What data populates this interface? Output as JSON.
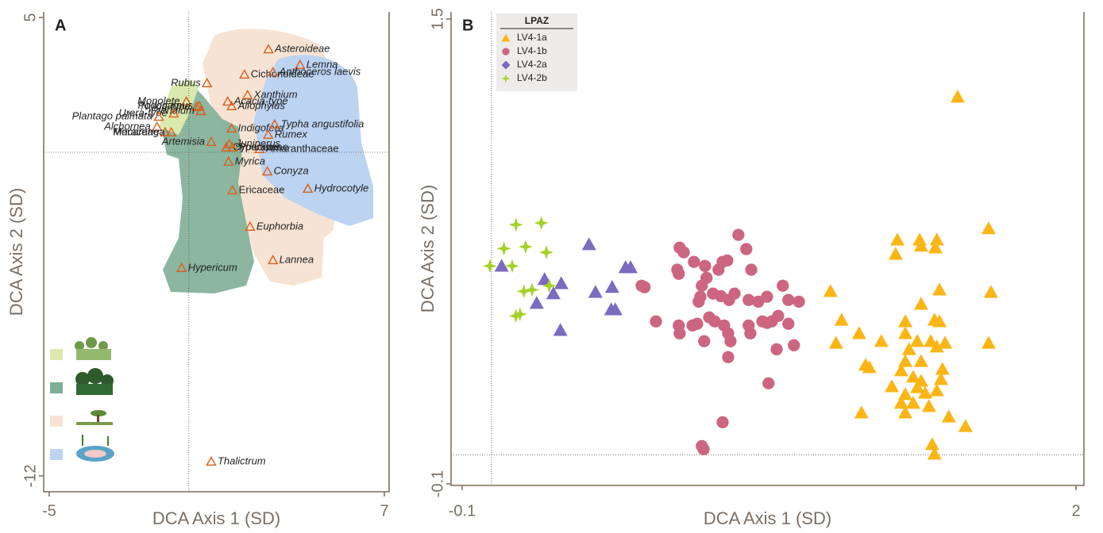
{
  "chart_data": [
    {
      "type": "scatter",
      "panel_label": "A",
      "xlabel": "DCA Axis 1 (SD)",
      "ylabel": "DCA Axis 2 (SD)",
      "xlim": [
        -5,
        7
      ],
      "ylim": [
        -12,
        5
      ],
      "xticks": [
        -5,
        7
      ],
      "yticks": [
        -12,
        5
      ],
      "zero_lines": true,
      "series": [
        {
          "color": "#d9601a",
          "marker": "open-triangle",
          "labels": [
            "Asteroideae",
            "Lemna",
            "Cichorioideae",
            "Anthoceros laevis",
            "Rubus",
            "Acacia-type",
            "Xanthium",
            "Allophylus",
            "Monolete",
            "Nuxia-type",
            "Podocarpus",
            "Pteridium",
            "Urera-type",
            "Plantago palmata",
            "Alchornea",
            "Moraceae",
            "Macaranga",
            "Indigofera",
            "Typha angustifolia",
            "Rumex",
            "Artemisia",
            "Amaranthaceae",
            "Cyperaceae",
            "Poaceae",
            "Juniperus",
            "Myrica",
            "Conyza",
            "Ericaceae",
            "Hydrocotyle",
            "Euphorbia",
            "Lannea",
            "Hypericum",
            "Thalictrum"
          ],
          "italic": [
            true,
            true,
            false,
            true,
            true,
            true,
            true,
            true,
            true,
            true,
            true,
            true,
            true,
            true,
            true,
            false,
            true,
            true,
            true,
            true,
            true,
            false,
            false,
            false,
            true,
            true,
            true,
            false,
            true,
            true,
            true,
            true,
            true
          ],
          "x": [
            2.85,
            3.98,
            1.99,
            3.01,
            0.65,
            1.39,
            2.1,
            1.53,
            -0.09,
            0.28,
            0.37,
            0.43,
            -0.54,
            -1.08,
            -1.14,
            -0.85,
            -0.63,
            1.53,
            3.07,
            2.84,
            0.8,
            2.53,
            1.34,
            1.56,
            1.45,
            1.42,
            2.81,
            1.56,
            4.26,
            2.19,
            3.01,
            -0.26,
            0.8
          ],
          "values": [
            3.82,
            3.24,
            2.88,
            2.97,
            2.56,
            1.88,
            2.12,
            1.71,
            1.88,
            1.68,
            1.72,
            1.53,
            1.44,
            1.32,
            0.94,
            0.74,
            0.74,
            0.88,
            1.03,
            0.65,
            0.38,
            0.12,
            0.18,
            0.18,
            0.3,
            -0.35,
            -0.71,
            -1.41,
            -1.35,
            -2.76,
            -4.0,
            -4.29,
            -11.47
          ]
        }
      ]
    },
    {
      "type": "scatter",
      "panel_label": "B",
      "xlabel": "DCA Axis 1 (SD)",
      "ylabel": "DCA Axis 2 (SD)",
      "xlim": [
        -0.1,
        2.0
      ],
      "ylim": [
        -0.1,
        1.5
      ],
      "xticks": [
        -0.1,
        2.0
      ],
      "yticks": [
        -0.1,
        1.5
      ],
      "zero_lines": true,
      "legend_title": "LPAZ",
      "legend": "top-left",
      "series": [
        {
          "name": "LV4-1a",
          "color": "#fbb515",
          "marker": "triangle",
          "legend_marker": "triangle",
          "x": [
            1.595,
            1.701,
            1.389,
            1.465,
            1.524,
            1.383,
            1.47,
            1.519,
            1.16,
            1.709,
            1.533,
            1.47,
            1.198,
            1.416,
            1.516,
            1.533,
            1.258,
            1.334,
            1.179,
            1.416,
            1.457,
            1.503,
            1.552,
            1.524,
            1.701,
            1.429,
            1.416,
            1.47,
            1.28,
            1.293,
            1.402,
            1.543,
            1.443,
            1.47,
            1.538,
            1.457,
            1.37,
            1.484,
            1.524,
            1.416,
            1.402,
            1.497,
            1.443,
            1.565,
            1.266,
            1.416,
            1.622,
            1.508,
            1.516
          ],
          "values": [
            1.232,
            0.779,
            0.74,
            0.74,
            0.74,
            0.691,
            0.719,
            0.713,
            0.563,
            0.56,
            0.568,
            0.519,
            0.464,
            0.459,
            0.464,
            0.459,
            0.418,
            0.391,
            0.385,
            0.418,
            0.391,
            0.391,
            0.385,
            0.372,
            0.385,
            0.363,
            0.322,
            0.322,
            0.309,
            0.301,
            0.29,
            0.295,
            0.268,
            0.254,
            0.26,
            0.232,
            0.235,
            0.213,
            0.221,
            0.208,
            0.178,
            0.167,
            0.178,
            0.131,
            0.145,
            0.145,
            0.098,
            0.036,
            0.003
          ]
        },
        {
          "name": "LV4-1b",
          "color": "#cc6680",
          "marker": "circle",
          "legend_marker": "circle",
          "x": [
            0.514,
            0.524,
            0.563,
            0.644,
            0.658,
            0.693,
            0.636,
            0.641,
            0.731,
            0.736,
            0.777,
            0.791,
            0.807,
            0.872,
            0.845,
            0.889,
            0.72,
            0.715,
            0.709,
            0.758,
            0.785,
            0.813,
            0.832,
            0.88,
            0.913,
            0.943,
            0.997,
            1.016,
            1.052,
            0.641,
            0.644,
            0.688,
            0.704,
            0.728,
            0.745,
            0.764,
            0.796,
            0.81,
            0.818,
            0.88,
            0.886,
            0.927,
            0.943,
            0.959,
            0.981,
            1.016,
            1.035,
            0.976,
            0.81,
            0.948,
            0.791,
            0.72,
            0.726
          ],
          "values": [
            0.582,
            0.577,
            0.459,
            0.713,
            0.697,
            0.664,
            0.637,
            0.623,
            0.65,
            0.609,
            0.637,
            0.664,
            0.669,
            0.708,
            0.757,
            0.637,
            0.582,
            0.544,
            0.527,
            0.555,
            0.546,
            0.533,
            0.555,
            0.533,
            0.527,
            0.544,
            0.582,
            0.533,
            0.527,
            0.445,
            0.418,
            0.445,
            0.451,
            0.391,
            0.473,
            0.459,
            0.445,
            0.418,
            0.391,
            0.445,
            0.418,
            0.459,
            0.454,
            0.459,
            0.478,
            0.451,
            0.377,
            0.363,
            0.336,
            0.246,
            0.112,
            0.03,
            0.019
          ]
        },
        {
          "name": "LV4-2a",
          "color": "#7b6cc0",
          "marker": "triangle",
          "legend_marker": "diamond",
          "x": [
            0.035,
            0.182,
            0.239,
            0.212,
            0.155,
            0.334,
            0.356,
            0.413,
            0.459,
            0.476,
            0.41,
            0.424,
            0.236
          ],
          "values": [
            0.65,
            0.604,
            0.59,
            0.555,
            0.522,
            0.724,
            0.56,
            0.577,
            0.645,
            0.645,
            0.5,
            0.5,
            0.429
          ]
        },
        {
          "name": "LV4-2b",
          "color": "#a6d12a",
          "marker": "star",
          "legend_marker": "star",
          "x": [
            0.084,
            0.171,
            0.043,
            0.117,
            0.188,
            -0.005,
            0.071,
            0.111,
            0.139,
            0.198,
            0.084,
            0.098
          ],
          "values": [
            0.792,
            0.798,
            0.71,
            0.716,
            0.697,
            0.65,
            0.65,
            0.563,
            0.568,
            0.582,
            0.478,
            0.484
          ]
        }
      ]
    }
  ]
}
